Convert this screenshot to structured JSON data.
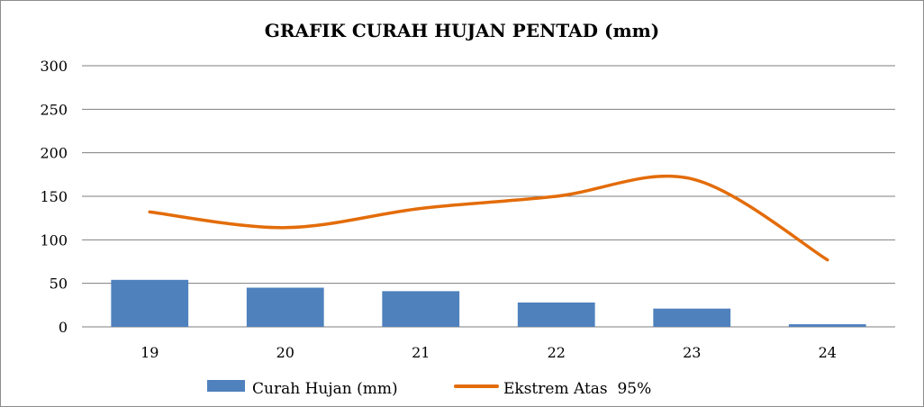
{
  "chart_data": {
    "type": "bar",
    "title": "GRAFIK CURAH HUJAN PENTAD (mm)",
    "categories": [
      "19",
      "20",
      "21",
      "22",
      "23",
      "24"
    ],
    "ylim": [
      0,
      300
    ],
    "yticks": [
      0,
      50,
      100,
      150,
      200,
      250,
      300
    ],
    "grid": true,
    "legend_position": "bottom",
    "series": [
      {
        "name": "Curah Hujan (mm)",
        "type": "bar",
        "color": "#4f81bd",
        "values": [
          54,
          45,
          41,
          28,
          21,
          3
        ]
      },
      {
        "name": "Ekstrem Atas  95%",
        "type": "line",
        "smooth": true,
        "color": "#e36c09",
        "values": [
          132,
          114,
          136,
          150,
          170,
          77
        ]
      }
    ]
  }
}
